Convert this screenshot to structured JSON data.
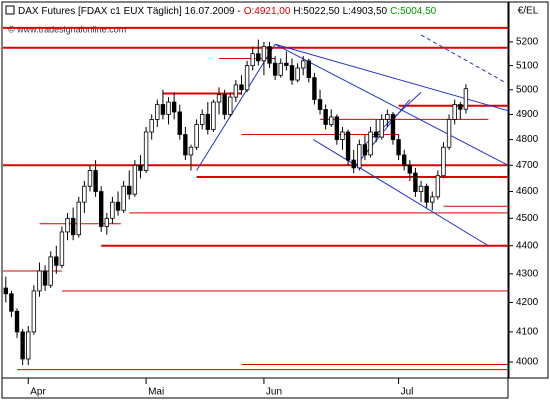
{
  "chart_data": {
    "type": "candlestick",
    "title": "DAX Futures [FDAX c1 EUX  Täglich] 16.07.2009 -",
    "header_values": [
      {
        "text": "O:4921,00",
        "color": "#d00000"
      },
      {
        "text": "H:5022,50",
        "color": "#000000"
      },
      {
        "text": "L:4903,50",
        "color": "#000000"
      },
      {
        "text": "C:5004,50",
        "color": "#009900"
      }
    ],
    "watermark": "© www.tradesignalonline.com",
    "y_label": "€/EL",
    "log_scale": true,
    "ylim": [
      3948,
      5373
    ],
    "yticks": [
      4000,
      4100,
      4200,
      4300,
      4400,
      4500,
      4600,
      4700,
      4800,
      4900,
      5000,
      5100,
      5200
    ],
    "xlim": [
      -0.5,
      89.5
    ],
    "xticks": [
      {
        "value": 4,
        "label": "Apr"
      },
      {
        "value": 25,
        "label": "Mai"
      },
      {
        "value": 46,
        "label": "Jun"
      },
      {
        "value": 70,
        "label": "Jul"
      }
    ],
    "up_color": "#ffffff",
    "down_color": "#000000",
    "open": [
      4250,
      4230,
      4170,
      4100,
      4010,
      4100,
      4240,
      4310,
      4260,
      4360,
      4330,
      4450,
      4500,
      4440,
      4560,
      4620,
      4680,
      4600,
      4470,
      4500,
      4560,
      4530,
      4620,
      4590,
      4700,
      4680,
      4830,
      4880,
      4940,
      4900,
      4950,
      4910,
      4820,
      4740,
      4770,
      4860,
      4900,
      4840,
      4950,
      4980,
      4900,
      4970,
      5020,
      5000,
      5100,
      5150,
      5120,
      5180,
      5110,
      5060,
      5110,
      5100,
      5040,
      5090,
      5120,
      5050,
      4960,
      4920,
      4860,
      4890,
      4800,
      4830,
      4720,
      4690,
      4780,
      4740,
      4830,
      4810,
      4880,
      4900,
      4800,
      4740,
      4700,
      4670,
      4600,
      4620,
      4560,
      4580,
      4660,
      4770,
      4880,
      4940,
      4921
    ],
    "high": [
      4290,
      4240,
      4180,
      4110,
      4120,
      4260,
      4340,
      4330,
      4380,
      4400,
      4470,
      4520,
      4540,
      4580,
      4640,
      4700,
      4720,
      4620,
      4520,
      4580,
      4600,
      4640,
      4680,
      4720,
      4740,
      4850,
      4900,
      4960,
      5000,
      4970,
      4990,
      4940,
      4850,
      4780,
      4880,
      4920,
      4950,
      4960,
      5010,
      5000,
      4990,
      5040,
      5060,
      5120,
      5180,
      5210,
      5200,
      5200,
      5140,
      5130,
      5160,
      5130,
      5110,
      5140,
      5130,
      5070,
      5000,
      4940,
      4920,
      4900,
      4850,
      4840,
      4760,
      4800,
      4820,
      4850,
      4880,
      4900,
      4920,
      4910,
      4820,
      4760,
      4720,
      4690,
      4640,
      4630,
      4600,
      4680,
      4790,
      4900,
      4960,
      4950,
      5022.5
    ],
    "low": [
      4200,
      4150,
      4080,
      3990,
      3990,
      4090,
      4220,
      4240,
      4250,
      4300,
      4320,
      4420,
      4420,
      4430,
      4520,
      4600,
      4580,
      4450,
      4440,
      4480,
      4510,
      4520,
      4570,
      4580,
      4650,
      4670,
      4800,
      4850,
      4880,
      4860,
      4880,
      4800,
      4720,
      4680,
      4760,
      4840,
      4820,
      4830,
      4900,
      4880,
      4890,
      4950,
      4980,
      4990,
      5080,
      5100,
      5060,
      5090,
      5040,
      5050,
      5080,
      5020,
      5030,
      5060,
      5030,
      4940,
      4900,
      4840,
      4850,
      4780,
      4760,
      4700,
      4670,
      4680,
      4720,
      4730,
      4790,
      4800,
      4850,
      4780,
      4720,
      4680,
      4640,
      4580,
      4560,
      4540,
      4530,
      4570,
      4650,
      4760,
      4860,
      4880,
      4903.5
    ],
    "close": [
      4230,
      4170,
      4100,
      4010,
      4100,
      4240,
      4310,
      4260,
      4360,
      4330,
      4450,
      4500,
      4440,
      4560,
      4620,
      4680,
      4600,
      4470,
      4500,
      4560,
      4530,
      4620,
      4590,
      4700,
      4680,
      4830,
      4880,
      4940,
      4900,
      4950,
      4910,
      4820,
      4740,
      4770,
      4860,
      4900,
      4840,
      4950,
      4980,
      4900,
      4970,
      5020,
      5000,
      5100,
      5150,
      5120,
      5180,
      5110,
      5060,
      5110,
      5100,
      5040,
      5090,
      5120,
      5050,
      4960,
      4920,
      4860,
      4890,
      4800,
      4830,
      4720,
      4690,
      4780,
      4740,
      4830,
      4810,
      4880,
      4900,
      4800,
      4740,
      4700,
      4670,
      4600,
      4620,
      4560,
      4580,
      4660,
      4770,
      4880,
      4940,
      4921,
      5004.5
    ],
    "lines": [
      {
        "x": [
          -0.5,
          89.5
        ],
        "y": [
          5260,
          5260
        ],
        "color": "#e00000",
        "thick": true
      },
      {
        "x": [
          -0.5,
          89.5
        ],
        "y": [
          5175,
          5175
        ],
        "color": "#e00000",
        "thick": true
      },
      {
        "x": [
          -0.5,
          89.5
        ],
        "y": [
          4700,
          4700
        ],
        "color": "#e00000",
        "thick": true
      },
      {
        "x": [
          34,
          89.5
        ],
        "y": [
          4655,
          4655
        ],
        "color": "#e00000",
        "thick": true
      },
      {
        "x": [
          17,
          89.5
        ],
        "y": [
          4400,
          4400
        ],
        "color": "#e00000",
        "thick": true
      },
      {
        "x": [
          28,
          42
        ],
        "y": [
          4985,
          4985
        ],
        "color": "#e00000",
        "thick": true
      },
      {
        "x": [
          70,
          89.5
        ],
        "y": [
          4935,
          4935
        ],
        "color": "#e00000",
        "thick": true
      },
      {
        "x": [
          -0.5,
          10
        ],
        "y": [
          4310,
          4310
        ],
        "color": "#e00000",
        "thick": false
      },
      {
        "x": [
          6,
          20.5
        ],
        "y": [
          4480,
          4480
        ],
        "color": "#e00000",
        "thick": false
      },
      {
        "x": [
          10,
          89.5
        ],
        "y": [
          4240,
          4240
        ],
        "color": "#e00000",
        "thick": false
      },
      {
        "x": [
          2,
          89.5
        ],
        "y": [
          3975,
          3975
        ],
        "color": "#e00000",
        "thick": false
      },
      {
        "x": [
          42,
          89.5
        ],
        "y": [
          3992,
          3992
        ],
        "color": "#e00000",
        "thick": false
      },
      {
        "x": [
          22,
          89.5
        ],
        "y": [
          4520,
          4520
        ],
        "color": "#e00000",
        "thick": false
      },
      {
        "x": [
          78,
          89.5
        ],
        "y": [
          4545,
          4545
        ],
        "color": "#e00000",
        "thick": false
      },
      {
        "x": [
          38,
          48
        ],
        "y": [
          5130,
          5130
        ],
        "color": "#e00000",
        "thick": false
      },
      {
        "x": [
          42,
          70
        ],
        "y": [
          4820,
          4820
        ],
        "color": "#e00000",
        "thick": false
      },
      {
        "x": [
          56,
          86
        ],
        "y": [
          4880,
          4880
        ],
        "color": "#e00000",
        "thick": false
      },
      {
        "x": [
          34,
          48
        ],
        "y": [
          4680,
          5190
        ],
        "color": "#2233cc",
        "thick": false
      },
      {
        "x": [
          48,
          89.5
        ],
        "y": [
          5190,
          4915
        ],
        "color": "#2233cc",
        "thick": false
      },
      {
        "x": [
          48,
          89.5
        ],
        "y": [
          5190,
          4700
        ],
        "color": "#2233cc",
        "thick": false
      },
      {
        "x": [
          54.8,
          86
        ],
        "y": [
          4800,
          4400
        ],
        "color": "#2233cc",
        "thick": false
      },
      {
        "x": [
          62,
          72
        ],
        "y": [
          4690,
          4960
        ],
        "color": "#2233cc",
        "thick": false
      },
      {
        "x": [
          64,
          74
        ],
        "y": [
          4780,
          4990
        ],
        "color": "#2233cc",
        "thick": false
      }
    ],
    "dashed_lines": [
      {
        "x": [
          74,
          89
        ],
        "y": [
          5230,
          5030
        ],
        "color": "#2233cc"
      }
    ]
  }
}
